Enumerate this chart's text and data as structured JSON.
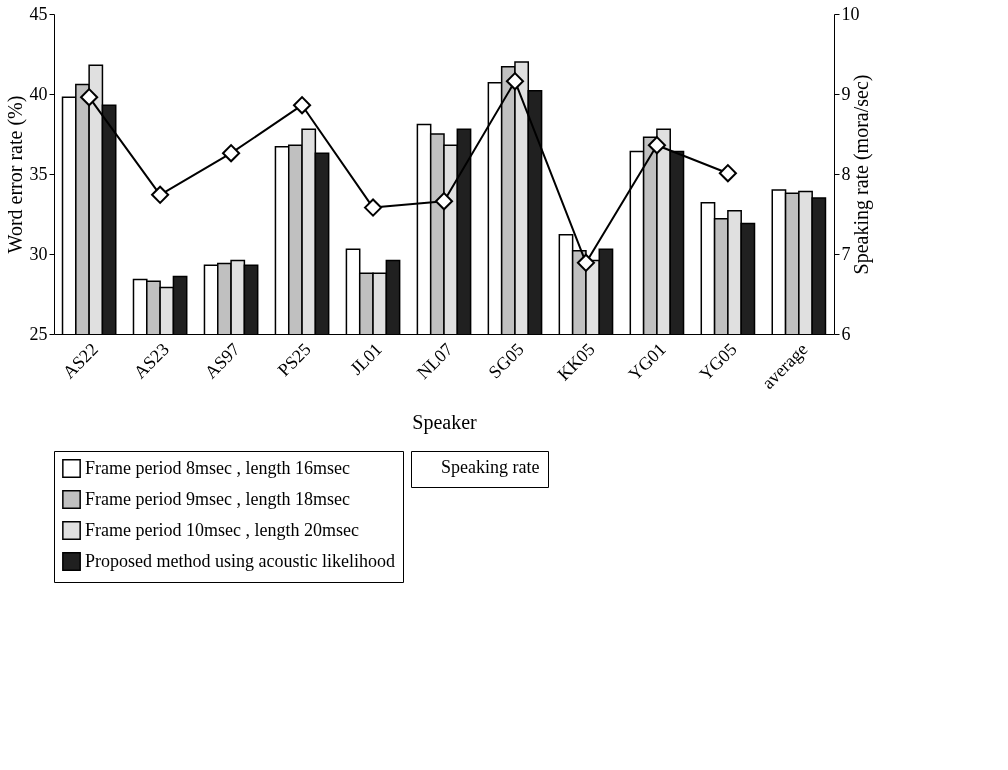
{
  "chart_data": {
    "type": "bar",
    "xlabel": "Speaker",
    "ylabel": "Word error rate (%)",
    "y2label": "Speaking rate (mora/sec)",
    "categories": [
      "AS22",
      "AS23",
      "AS97",
      "PS25",
      "JL01",
      "NL07",
      "SG05",
      "KK05",
      "YG01",
      "YG05",
      "average"
    ],
    "series": [
      {
        "name": "Frame period 8msec , length 16msec",
        "color": "#ffffff",
        "values": [
          39.8,
          28.4,
          29.3,
          36.7,
          30.3,
          38.1,
          40.7,
          31.2,
          36.4,
          33.2,
          34.0
        ]
      },
      {
        "name": "Frame period 9msec , length 18msec",
        "color": "#c0c0c0",
        "values": [
          40.6,
          28.3,
          29.4,
          36.8,
          28.8,
          37.5,
          41.7,
          30.2,
          37.3,
          32.2,
          33.8
        ]
      },
      {
        "name": "Frame period 10msec , length 20msec",
        "color": "#e0e0e0",
        "values": [
          41.8,
          27.9,
          29.6,
          37.8,
          28.8,
          36.8,
          42.0,
          29.6,
          37.8,
          32.7,
          33.9
        ]
      },
      {
        "name": "Proposed method using acoustic likelihood",
        "color": "#202020",
        "values": [
          39.3,
          28.6,
          29.3,
          36.3,
          29.6,
          37.8,
          40.2,
          30.3,
          36.4,
          31.9,
          33.5
        ]
      },
      {
        "name": "Speaking rate",
        "type": "line",
        "axis": "y2",
        "color": "#000000",
        "marker": "diamond",
        "values": [
          8.96,
          7.74,
          8.26,
          8.86,
          7.58,
          7.66,
          9.16,
          6.89,
          8.36,
          8.01,
          null
        ]
      }
    ],
    "ylim": [
      25,
      45
    ],
    "yticks": [
      25,
      30,
      35,
      40,
      45
    ],
    "y2lim": [
      6,
      10
    ],
    "y2ticks": [
      6,
      7,
      8,
      9,
      10
    ],
    "grid": false,
    "legend": "bottom"
  }
}
